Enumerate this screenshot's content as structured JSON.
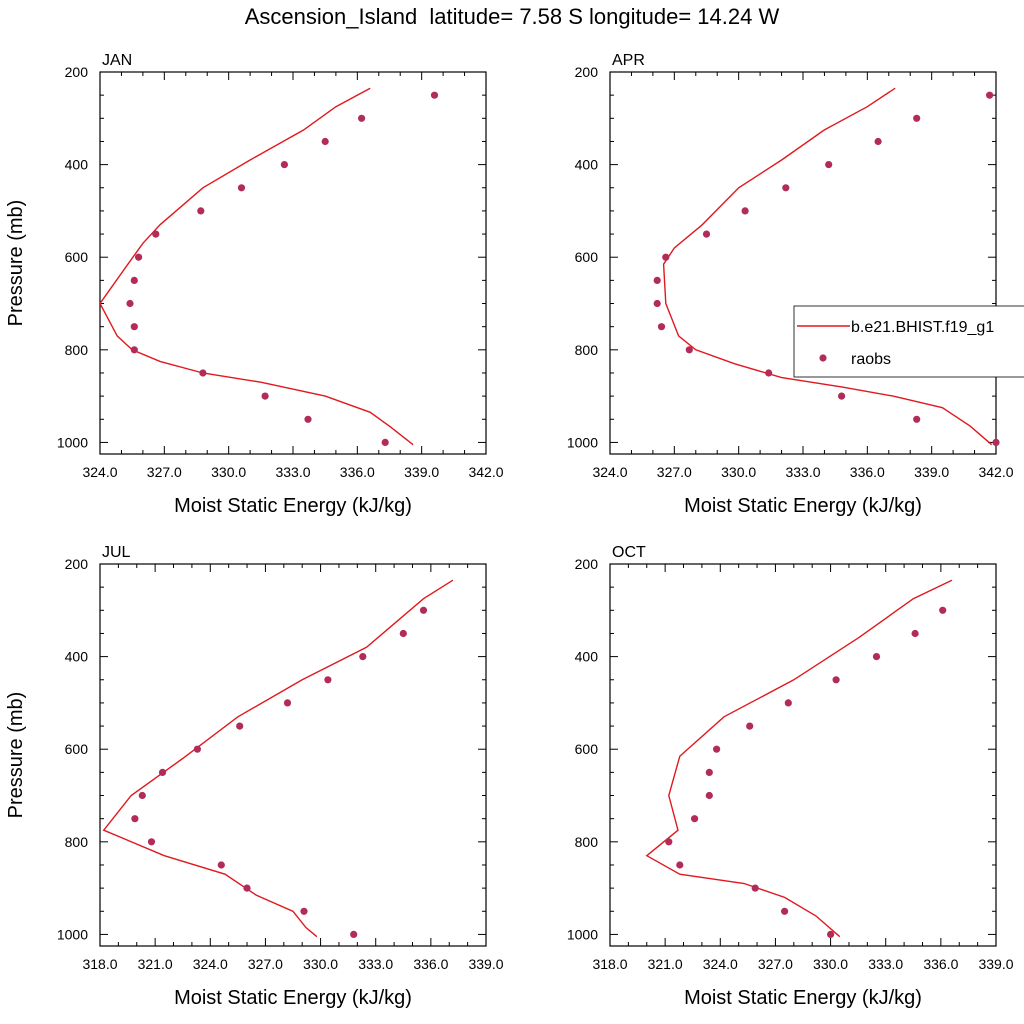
{
  "figure": {
    "title": "Ascension_Island  latitude= 7.58 S longitude= 14.24 W"
  },
  "colors": {
    "model": "#e0191f",
    "obs": "#b22c59",
    "axis": "#000000"
  },
  "chart_data": [
    {
      "type": "line",
      "title": "JAN",
      "xlabel": "Moist Static Energy (kJ/kg)",
      "ylabel": "Pressure (mb)",
      "xlim": [
        324,
        342
      ],
      "ylim": [
        1025,
        200
      ],
      "xticks": [
        324,
        327,
        330,
        333,
        336,
        339,
        342
      ],
      "xtick_labels": [
        "324.0",
        "327.0",
        "330.0",
        "333.0",
        "336.0",
        "339.0",
        "342.0"
      ],
      "yticks": [
        200,
        400,
        600,
        800,
        1000
      ],
      "ytick_labels": [
        "200",
        "400",
        "600",
        "800",
        "1000"
      ],
      "series": [
        {
          "kind": "line",
          "x": [
            336.6,
            335.0,
            333.5,
            331.0,
            328.8,
            326.8,
            326.0,
            325.3,
            324.0,
            324.8,
            325.5,
            326.8,
            328.8,
            331.5,
            334.5,
            336.6,
            337.5,
            338.6
          ],
          "y": [
            235,
            275,
            325,
            390,
            450,
            530,
            570,
            615,
            700,
            770,
            800,
            825,
            850,
            870,
            900,
            935,
            965,
            1005
          ]
        },
        {
          "kind": "scatter",
          "x": [
            339.6,
            336.2,
            334.5,
            332.6,
            330.6,
            328.7,
            326.6,
            325.8,
            325.6,
            325.4,
            325.6,
            325.6,
            328.8,
            331.7,
            333.7,
            337.3
          ],
          "y": [
            250,
            300,
            350,
            400,
            450,
            500,
            550,
            600,
            650,
            700,
            750,
            800,
            850,
            900,
            950,
            1000
          ]
        }
      ]
    },
    {
      "type": "line",
      "title": "APR",
      "xlabel": "Moist Static Energy (kJ/kg)",
      "ylabel": "",
      "xlim": [
        324,
        342
      ],
      "ylim": [
        1025,
        200
      ],
      "xticks": [
        324,
        327,
        330,
        333,
        336,
        339,
        342
      ],
      "xtick_labels": [
        "324.0",
        "327.0",
        "330.0",
        "333.0",
        "336.0",
        "339.0",
        "342.0"
      ],
      "yticks": [
        200,
        400,
        600,
        800,
        1000
      ],
      "ytick_labels": [
        "200",
        "400",
        "600",
        "800",
        "1000"
      ],
      "series": [
        {
          "kind": "line",
          "x": [
            337.3,
            336.0,
            334.0,
            332.0,
            330.0,
            328.3,
            327.0,
            326.5,
            326.6,
            327.2,
            328.0,
            329.8,
            332.0,
            334.8,
            337.2,
            339.5,
            340.8,
            341.8
          ],
          "y": [
            235,
            275,
            325,
            390,
            450,
            530,
            580,
            615,
            700,
            770,
            800,
            830,
            860,
            880,
            900,
            925,
            965,
            1005
          ]
        },
        {
          "kind": "scatter",
          "x": [
            341.7,
            338.3,
            336.5,
            334.2,
            332.2,
            330.3,
            328.5,
            326.6,
            326.2,
            326.2,
            326.4,
            327.7,
            331.4,
            334.8,
            338.3,
            342.0
          ],
          "y": [
            250,
            300,
            350,
            400,
            450,
            500,
            550,
            600,
            650,
            700,
            750,
            800,
            850,
            900,
            950,
            1000
          ]
        }
      ],
      "legend": {
        "placement": "right",
        "entries": [
          {
            "label": "b.e21.BHIST.f19_g1",
            "marker": "line"
          },
          {
            "label": "raobs",
            "marker": "dot"
          }
        ]
      }
    },
    {
      "type": "line",
      "title": "JUL",
      "xlabel": "Moist Static Energy (kJ/kg)",
      "ylabel": "Pressure (mb)",
      "xlim": [
        318,
        339
      ],
      "ylim": [
        1025,
        200
      ],
      "xticks": [
        318,
        321,
        324,
        327,
        330,
        333,
        336,
        339
      ],
      "xtick_labels": [
        "318.0",
        "321.0",
        "324.0",
        "327.0",
        "330.0",
        "333.0",
        "336.0",
        "339.0"
      ],
      "yticks": [
        200,
        400,
        600,
        800,
        1000
      ],
      "ytick_labels": [
        "200",
        "400",
        "600",
        "800",
        "1000"
      ],
      "series": [
        {
          "kind": "line",
          "x": [
            337.2,
            335.6,
            332.5,
            329.0,
            325.5,
            322.5,
            319.7,
            318.2,
            321.5,
            324.8,
            326.5,
            328.5,
            329.2,
            329.8
          ],
          "y": [
            235,
            275,
            380,
            450,
            530,
            620,
            700,
            775,
            830,
            870,
            915,
            950,
            985,
            1005
          ]
        },
        {
          "kind": "scatter",
          "x": [
            335.6,
            334.5,
            332.3,
            330.4,
            328.2,
            325.6,
            323.3,
            321.4,
            320.3,
            319.9,
            320.8,
            324.6,
            326.0,
            329.1,
            331.8
          ],
          "y": [
            300,
            350,
            400,
            450,
            500,
            550,
            600,
            650,
            700,
            750,
            800,
            850,
            900,
            950,
            1000
          ]
        }
      ]
    },
    {
      "type": "line",
      "title": "OCT",
      "xlabel": "Moist Static Energy (kJ/kg)",
      "ylabel": "",
      "xlim": [
        318,
        339
      ],
      "ylim": [
        1025,
        200
      ],
      "xticks": [
        318,
        321,
        324,
        327,
        330,
        333,
        336,
        339
      ],
      "xtick_labels": [
        "318.0",
        "321.0",
        "324.0",
        "327.0",
        "330.0",
        "333.0",
        "336.0",
        "339.0"
      ],
      "yticks": [
        200,
        400,
        600,
        800,
        1000
      ],
      "ytick_labels": [
        "200",
        "400",
        "600",
        "800",
        "1000"
      ],
      "series": [
        {
          "kind": "line",
          "x": [
            336.6,
            334.5,
            331.5,
            328.0,
            324.2,
            321.8,
            321.2,
            321.7,
            320.0,
            321.8,
            325.3,
            327.5,
            329.2,
            330.5
          ],
          "y": [
            235,
            275,
            360,
            450,
            530,
            615,
            700,
            775,
            830,
            870,
            890,
            920,
            960,
            1005
          ]
        },
        {
          "kind": "scatter",
          "x": [
            336.1,
            334.6,
            332.5,
            330.3,
            327.7,
            325.6,
            323.8,
            323.4,
            323.4,
            322.6,
            321.2,
            321.8,
            325.9,
            327.5,
            330.0
          ],
          "y": [
            300,
            350,
            400,
            450,
            500,
            550,
            600,
            650,
            700,
            750,
            800,
            850,
            900,
            950,
            1000
          ]
        }
      ]
    }
  ]
}
